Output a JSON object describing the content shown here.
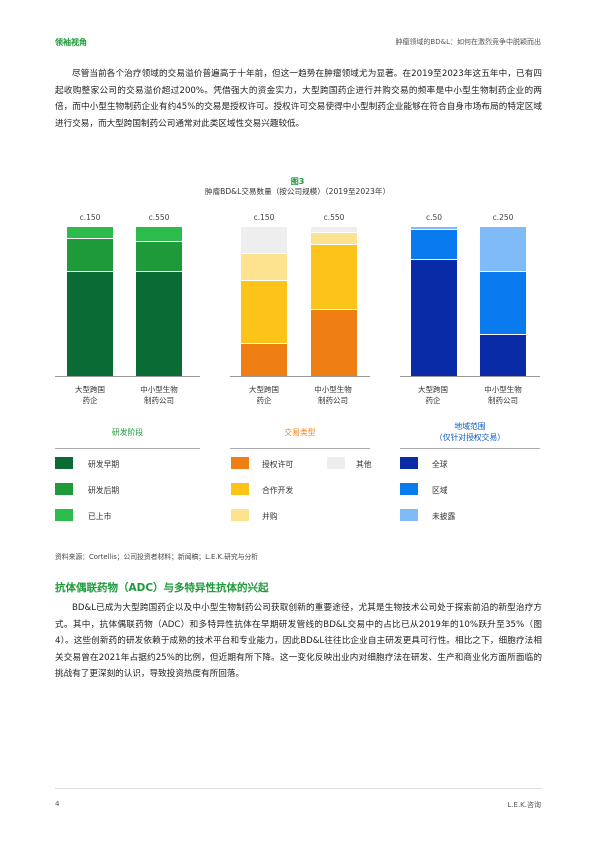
{
  "header": {
    "left": "领袖视角",
    "right": "肿瘤领域的BD&L：如何在激烈竞争中脱颖而出"
  },
  "intro_paragraph": "尽管当前各个治疗领域的交易溢价普遍高于十年前，但这一趋势在肿瘤领域尤为显著。在2019至2023年这五年中，已有四起收购整家公司的交易溢价超过200%。凭借强大的资金实力，大型跨国药企进行并购交易的频率是中小型生物制药企业的两倍，而中小型生物制药企业有约45%的交易是授权许可。授权许可交易使得中小型制药企业能够在符合自身市场布局的特定区域进行交易，而大型跨国制药公司通常对此类区域性交易兴趣较低。",
  "figure": {
    "label": "图3",
    "subtitle": "肿瘤BD&L交易数量（按公司规模）（2019至2023年）"
  },
  "chart_data": [
    {
      "type": "bar",
      "stacked": true,
      "group": "研发阶段",
      "categories": [
        "大型跨国药企",
        "中小型生物制药公司"
      ],
      "totals_label": [
        "c.150",
        "c.550"
      ],
      "series": [
        {
          "name": "研发早期",
          "color": "#0b6b34",
          "values": [
            0.7,
            0.7
          ]
        },
        {
          "name": "研发后期",
          "color": "#1e9a3a",
          "values": [
            0.22,
            0.2
          ]
        },
        {
          "name": "已上市",
          "color": "#2dbb4b",
          "values": [
            0.08,
            0.1
          ]
        }
      ]
    },
    {
      "type": "bar",
      "stacked": true,
      "group": "交易类型",
      "categories": [
        "大型跨国药企",
        "中小型生物制药公司"
      ],
      "totals_label": [
        "c.150",
        "c.550"
      ],
      "series": [
        {
          "name": "授权许可",
          "color": "#f07f13",
          "values": [
            0.22,
            0.45
          ]
        },
        {
          "name": "合作开发",
          "color": "#fcc419",
          "values": [
            0.42,
            0.43
          ]
        },
        {
          "name": "并购",
          "color": "#fde28f",
          "values": [
            0.18,
            0.08
          ]
        },
        {
          "name": "其他",
          "color": "#eeeeee",
          "values": [
            0.18,
            0.04
          ]
        }
      ]
    },
    {
      "type": "bar",
      "stacked": true,
      "group": "地域范围（仅针对授权交易）",
      "categories": [
        "大型跨国药企",
        "中小型生物制药公司"
      ],
      "totals_label": [
        "c.50",
        "c.250"
      ],
      "series": [
        {
          "name": "全球",
          "color": "#0a2ba8",
          "values": [
            0.78,
            0.28
          ]
        },
        {
          "name": "区域",
          "color": "#0a7bef",
          "values": [
            0.2,
            0.42
          ]
        },
        {
          "name": "未披露",
          "color": "#7fbbf7",
          "values": [
            0.02,
            0.3
          ]
        }
      ]
    }
  ],
  "group_labels": {
    "g1": "研发阶段",
    "g2": "交易类型",
    "g3_line1": "地域范围",
    "g3_line2": "（仅针对授权交易）"
  },
  "cat_labels": {
    "big_l1": "大型跨国",
    "big_l2": "药企",
    "small_l1": "中小型生物",
    "small_l2": "制药公司"
  },
  "legend": {
    "g1": [
      "研发早期",
      "研发后期",
      "已上市"
    ],
    "g2": [
      "授权许可",
      "合作开发",
      "并购",
      "其他"
    ],
    "g3": [
      "全球",
      "区域",
      "未披露"
    ]
  },
  "colors": {
    "accent": "#1e9a3a",
    "group3_label": "#0a5bc4",
    "group2_label": "#f07f13"
  },
  "source": "资料来源：Cortellis；公司投资者材料；新闻稿；L.E.K.研究与分析",
  "section_title": "抗体偶联药物（ADC）与多特异性抗体的兴起",
  "body_paragraph": "BD&L已成为大型跨国药企以及中小型生物制药公司获取创新的重要途径，尤其是生物技术公司处于探索前沿的新型治疗方式。其中，抗体偶联药物（ADC）和多特异性抗体在早期研发管线的BD&L交易中的占比已从2019年的10%跃升至35%（图4）。这些创新药的研发依赖于成熟的技术平台和专业能力，因此BD&L往往比企业自主研发更具可行性。相比之下，细胞疗法相关交易曾在2021年占据约25%的比例，但近期有所下降。这一变化反映出业内对细胞疗法在研发、生产和商业化方面所面临的挑战有了更深刻的认识，导致投资热度有所回落。",
  "footer": {
    "page": "4",
    "brand": "L.E.K.咨询"
  }
}
